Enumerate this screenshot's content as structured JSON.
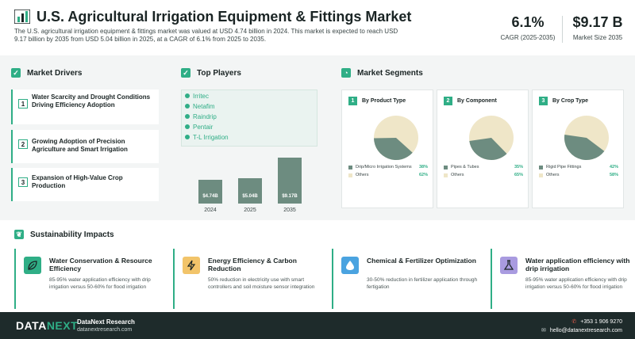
{
  "header": {
    "title": "U.S. Agricultural Irrigation Equipment & Fittings Market",
    "description": "The U.S. agricultural irrigation equipment & fittings market was valued at USD 4.74 billion in 2024. This market is expected to reach USD 9.17 billion by 2035 from USD 5.04 billion in 2025, at a CAGR of 6.1% from 2025 to 2035.",
    "kpis": [
      {
        "value": "6.1%",
        "label": "CAGR (2025-2035)"
      },
      {
        "value": "$9.17 B",
        "label": "Market Size 2035"
      }
    ]
  },
  "drivers": {
    "heading": "Market Drivers",
    "items": [
      {
        "num": "1",
        "text": "Water Scarcity and Drought Conditions Driving Efficiency Adoption"
      },
      {
        "num": "2",
        "text": "Growing Adoption of Precision Agriculture and Smart Irrigation"
      },
      {
        "num": "3",
        "text": "Expansion of High-Value Crop Production"
      }
    ]
  },
  "players": {
    "heading": "Top Players",
    "items": [
      "Irritec",
      "Netafim",
      "Raindrip",
      "Pentair",
      "T-L Irrigation"
    ]
  },
  "chart_data": {
    "type": "bar",
    "categories": [
      "2024",
      "2025",
      "2035"
    ],
    "values": [
      4.74,
      5.04,
      9.17
    ],
    "value_labels": [
      "$4.74B",
      "$5.04B",
      "$9.17B"
    ]
  },
  "segments": {
    "heading": "Market Segments",
    "cards": [
      {
        "num": "1",
        "title": "By Product Type",
        "items": [
          {
            "label": "Drip/Micro Irrigation Systems",
            "pct": "38%",
            "value": 38
          },
          {
            "label": "Others",
            "pct": "62%",
            "value": 62
          }
        ]
      },
      {
        "num": "2",
        "title": "By Component",
        "items": [
          {
            "label": "Pipes & Tubes",
            "pct": "35%",
            "value": 35
          },
          {
            "label": "Others",
            "pct": "65%",
            "value": 65
          }
        ]
      },
      {
        "num": "3",
        "title": "By Crop Type",
        "items": [
          {
            "label": "Rigid Pipe Fittings",
            "pct": "42%",
            "value": 42
          },
          {
            "label": "Others",
            "pct": "58%",
            "value": 58
          }
        ]
      }
    ]
  },
  "sustainability": {
    "heading": "Sustainability Impacts",
    "cards": [
      {
        "title": "Water Conservation & Resource Efficiency",
        "desc": "85-95% water application efficiency with drip irrigation versus 50-60% for flood irrigation",
        "icon": "leaf-icon"
      },
      {
        "title": "Energy Efficiency & Carbon Reduction",
        "desc": "50% reduction in electricity use with smart controllers and soil moisture sensor integration",
        "icon": "lightning-icon"
      },
      {
        "title": "Chemical & Fertilizer Optimization",
        "desc": "30-50% reduction in fertilizer application through fertigation",
        "icon": "droplet-icon"
      },
      {
        "title": "Water application efficiency with drip irrigation",
        "desc": "85-95% water application efficiency with drip irrigation versus 50-60% for flood irrigation",
        "icon": "flask-icon"
      }
    ]
  },
  "footer": {
    "logo_a": "DATA",
    "logo_b": "NEXT",
    "brand": "DataNext Research",
    "site": "datanextresearch.com",
    "phone": "+353 1 906 9270",
    "email": "hello@datanextresearch.com"
  },
  "colors": {
    "accent": "#2fae86",
    "pie_dark": "#6d8c80",
    "pie_light": "#efe6c8",
    "footer_bg": "#1e2b2b"
  }
}
